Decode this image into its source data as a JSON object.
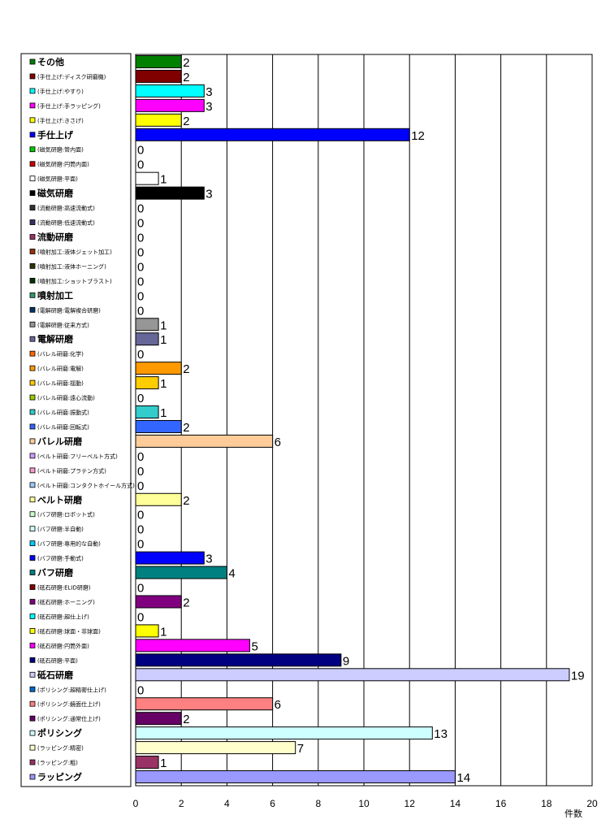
{
  "chart_data": {
    "type": "bar",
    "orientation": "horizontal",
    "xlabel": "件数",
    "xlim": [
      0,
      20
    ],
    "xticks": [
      0,
      2,
      4,
      6,
      8,
      10,
      12,
      14,
      16,
      18,
      20
    ],
    "grid": true,
    "legend": "left",
    "categories": [
      {
        "label": "その他",
        "value": 2,
        "color": "#008000",
        "major": true
      },
      {
        "label": "(手仕上げ:ディスク研磨機)",
        "value": 2,
        "color": "#800000",
        "major": false
      },
      {
        "label": "(手仕上げ:やすり)",
        "value": 3,
        "color": "#00FFFF",
        "major": false
      },
      {
        "label": "(手仕上げ:手ラッピング)",
        "value": 3,
        "color": "#FF00FF",
        "major": false
      },
      {
        "label": "(手仕上げ:きさげ)",
        "value": 2,
        "color": "#FFFF00",
        "major": false
      },
      {
        "label": "手仕上げ",
        "value": 12,
        "color": "#0000FF",
        "major": true
      },
      {
        "label": "(磁気研磨:管内面)",
        "value": 0,
        "color": "#00CC00",
        "major": false
      },
      {
        "label": "(磁気研磨:円筒内面)",
        "value": 0,
        "color": "#CC0000",
        "major": false
      },
      {
        "label": "(磁気研磨:平面)",
        "value": 1,
        "color": "#FFFFFF",
        "major": false
      },
      {
        "label": "磁気研磨",
        "value": 3,
        "color": "#000000",
        "major": true
      },
      {
        "label": "(流動研磨:高速流動式)",
        "value": 0,
        "color": "#333333",
        "major": false
      },
      {
        "label": "(流動研磨:低速流動式)",
        "value": 0,
        "color": "#333366",
        "major": false
      },
      {
        "label": "流動研磨",
        "value": 0,
        "color": "#993366",
        "major": true
      },
      {
        "label": "(噴射加工:液体ジェット加工)",
        "value": 0,
        "color": "#993300",
        "major": false
      },
      {
        "label": "(噴射加工:液体ホーニング)",
        "value": 0,
        "color": "#333300",
        "major": false
      },
      {
        "label": "(噴射加工:ショットブラスト)",
        "value": 0,
        "color": "#003300",
        "major": false
      },
      {
        "label": "噴射加工",
        "value": 0,
        "color": "#339966",
        "major": true
      },
      {
        "label": "(電解研磨:電解複合研磨)",
        "value": 0,
        "color": "#003366",
        "major": false
      },
      {
        "label": "(電解研磨:従来方式)",
        "value": 1,
        "color": "#969696",
        "major": false
      },
      {
        "label": "電解研磨",
        "value": 1,
        "color": "#666699",
        "major": true
      },
      {
        "label": "(バレル研磨:化学)",
        "value": 0,
        "color": "#FF6600",
        "major": false
      },
      {
        "label": "(バレル研磨:電解)",
        "value": 2,
        "color": "#FF9900",
        "major": false
      },
      {
        "label": "(バレル研磨:揺動)",
        "value": 1,
        "color": "#FFCC00",
        "major": false
      },
      {
        "label": "(バレル研磨:遠心流動)",
        "value": 0,
        "color": "#99CC00",
        "major": false
      },
      {
        "label": "(バレル研磨:振動式)",
        "value": 1,
        "color": "#33CCCC",
        "major": false
      },
      {
        "label": "(バレル研磨:回転式)",
        "value": 2,
        "color": "#3366FF",
        "major": false
      },
      {
        "label": "バレル研磨",
        "value": 6,
        "color": "#FFCC99",
        "major": true
      },
      {
        "label": "(ベルト研磨:フリーベルト方式)",
        "value": 0,
        "color": "#CC99FF",
        "major": false
      },
      {
        "label": "(ベルト研磨:プラテン方式)",
        "value": 0,
        "color": "#FF99CC",
        "major": false
      },
      {
        "label": "(ベルト研磨:コンタクトホイール方式)",
        "value": 0,
        "color": "#99CCFF",
        "major": false
      },
      {
        "label": "ベルト研磨",
        "value": 2,
        "color": "#FFFF99",
        "major": true
      },
      {
        "label": "(バフ研磨:ロボット式)",
        "value": 0,
        "color": "#CCFFCC",
        "major": false
      },
      {
        "label": "(バフ研磨:半自動)",
        "value": 0,
        "color": "#CCFFFF",
        "major": false
      },
      {
        "label": "(バフ研磨:専用的な自動)",
        "value": 0,
        "color": "#00CCFF",
        "major": false
      },
      {
        "label": "(バフ研磨:手動式)",
        "value": 3,
        "color": "#0000FF",
        "major": false
      },
      {
        "label": "バフ研磨",
        "value": 4,
        "color": "#008080",
        "major": true
      },
      {
        "label": "(砥石研磨:ELID研磨)",
        "value": 0,
        "color": "#800000",
        "major": false
      },
      {
        "label": "(砥石研磨:ホーニング)",
        "value": 2,
        "color": "#800080",
        "major": false
      },
      {
        "label": "(砥石研磨:超仕上げ)",
        "value": 0,
        "color": "#00FFFF",
        "major": false
      },
      {
        "label": "(砥石研磨:球面・非球面)",
        "value": 1,
        "color": "#FFFF00",
        "major": false
      },
      {
        "label": "(砥石研磨:円筒外面)",
        "value": 5,
        "color": "#FF00FF",
        "major": false
      },
      {
        "label": "(砥石研磨:平面)",
        "value": 9,
        "color": "#000080",
        "major": false
      },
      {
        "label": "砥石研磨",
        "value": 19,
        "color": "#CCCCFF",
        "major": true
      },
      {
        "label": "(ポリシング:超精密仕上げ)",
        "value": 0,
        "color": "#0066CC",
        "major": false
      },
      {
        "label": "(ポリシング:鏡面仕上げ)",
        "value": 6,
        "color": "#FF8080",
        "major": false
      },
      {
        "label": "(ポリシング:通常仕上げ)",
        "value": 2,
        "color": "#660066",
        "major": false
      },
      {
        "label": "ポリシング",
        "value": 13,
        "color": "#CCFFFF",
        "major": true
      },
      {
        "label": "(ラッピング:精密)",
        "value": 7,
        "color": "#FFFFCC",
        "major": false
      },
      {
        "label": "(ラッピング:粗)",
        "value": 1,
        "color": "#993366",
        "major": false
      },
      {
        "label": "ラッピング",
        "value": 14,
        "color": "#9999FF",
        "major": true
      }
    ]
  }
}
